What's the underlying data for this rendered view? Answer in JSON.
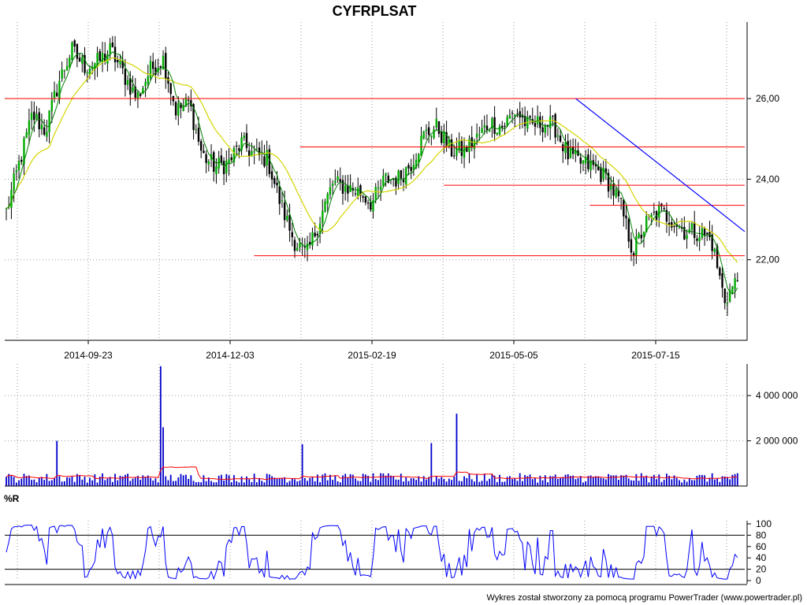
{
  "title": "CYFRPLSAT",
  "credit": "Wykres został stworzony za pomocą programu PowerTrader (www.powertrader.pl)",
  "indicator_label": "%R",
  "colors": {
    "up_candle": "#00aa00",
    "down_candle": "#000000",
    "ma_short": "#008000",
    "ma_long": "#d4d400",
    "support_lines": "#ff0000",
    "trendline": "#0000ff",
    "volume_bars": "#0000cc",
    "volume_avg": "#ff0000",
    "williams_r": "#0000ff"
  },
  "chart_data": [
    {
      "type": "candlestick",
      "title": "CYFRPLSAT",
      "x_tick_labels": [
        "2014-09-23",
        "2014-12-03",
        "2015-02-19",
        "2015-05-05",
        "2015-07-15"
      ],
      "y_tick_labels": [
        "26,00",
        "24,00",
        "22,00"
      ],
      "ylim": [
        20.0,
        27.9
      ],
      "grid": true,
      "approx_close_path": [
        23.2,
        24.4,
        25.6,
        25.2,
        26.4,
        27.2,
        26.8,
        26.9,
        27.2,
        26.6,
        26.0,
        26.7,
        27.0,
        25.7,
        25.9,
        24.6,
        24.3,
        24.4,
        24.9,
        24.6,
        24.5,
        23.4,
        22.5,
        22.1,
        23.0,
        23.9,
        23.8,
        23.7,
        23.4,
        24.0,
        24.0,
        24.4,
        25.1,
        25.3,
        24.7,
        24.7,
        25.0,
        25.4,
        25.3,
        25.7,
        25.3,
        25.4,
        25.3,
        24.6,
        24.4,
        24.3,
        24.0,
        23.4,
        22.2,
        22.9,
        23.2,
        23.0,
        22.7,
        22.7,
        22.5,
        21.0,
        21.5
      ],
      "horizontal_levels": [
        {
          "value": 26.0,
          "from_date": "2014-07-15",
          "to_date": "2015-08-20"
        },
        {
          "value": 24.8,
          "from_date": "2015-01-07",
          "to_date": "2015-08-20"
        },
        {
          "value": 23.85,
          "from_date": "2015-03-20",
          "to_date": "2015-08-20"
        },
        {
          "value": 23.35,
          "from_date": "2015-06-01",
          "to_date": "2015-08-20"
        },
        {
          "value": 22.1,
          "from_date": "2014-12-15",
          "to_date": "2015-08-20"
        }
      ],
      "trendline": {
        "from": [
          "2015-05-25",
          26.0
        ],
        "to": [
          "2015-08-20",
          22.7
        ]
      }
    },
    {
      "type": "bar",
      "title": "",
      "y_tick_labels": [
        "4 000 000",
        "2 000 000"
      ],
      "ylim": [
        0,
        5400000
      ],
      "approx_typical_volume": 380000,
      "notable_spikes": [
        {
          "date": "2014-10-29",
          "value": 5300000
        },
        {
          "date": "2014-10-30",
          "value": 2600000
        },
        {
          "date": "2015-03-26",
          "value": 3200000
        },
        {
          "date": "2014-09-07",
          "value": 2000000
        },
        {
          "date": "2015-01-08",
          "value": 1850000
        },
        {
          "date": "2015-03-14",
          "value": 1900000
        }
      ]
    },
    {
      "type": "line",
      "title": "%R",
      "y_tick_labels": [
        "100",
        "80",
        "60",
        "40",
        "20",
        "0"
      ],
      "ylim": [
        0,
        100
      ],
      "reference_levels": [
        20,
        80
      ]
    }
  ]
}
